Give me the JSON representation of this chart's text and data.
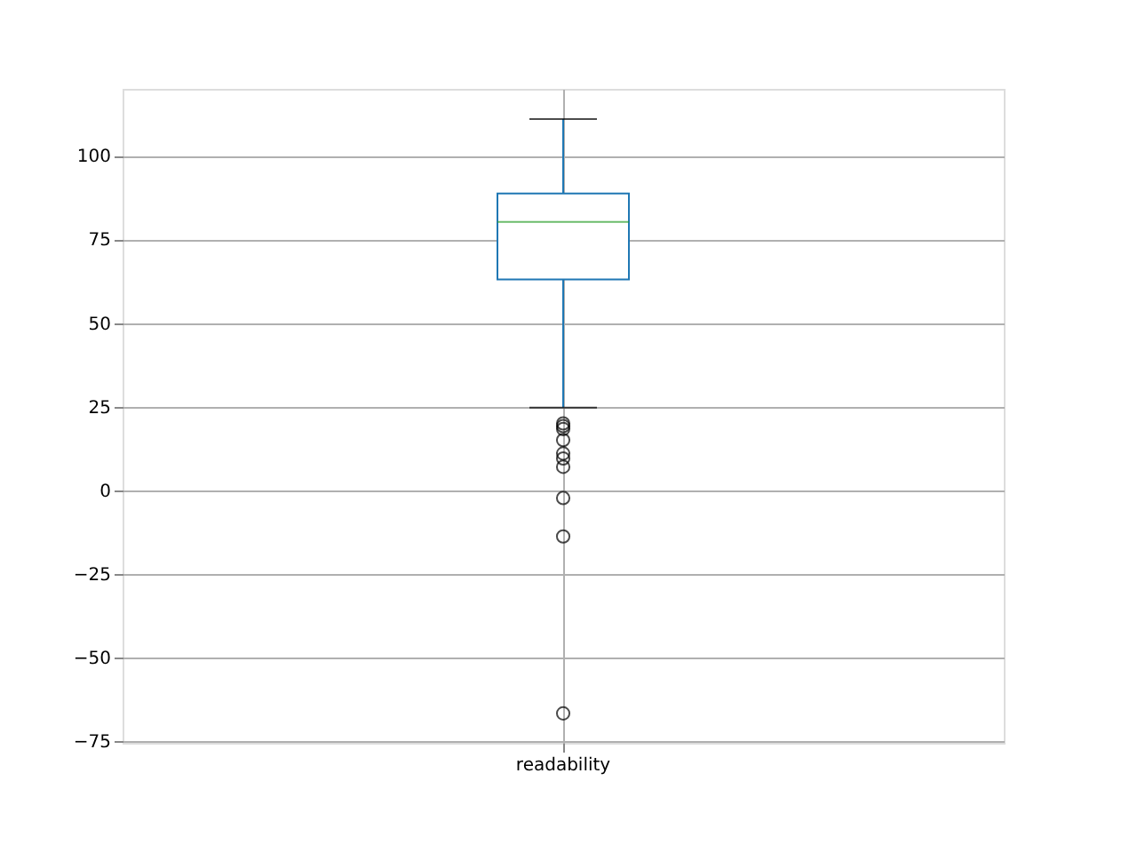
{
  "chart_data": {
    "type": "box",
    "categories": [
      "readability"
    ],
    "boxes": [
      {
        "low": 24.7,
        "q1": 63,
        "median": 80.2,
        "q3": 88.7,
        "high": 111,
        "outliers": [
          20,
          19.2,
          18.3,
          15,
          11,
          9.5,
          7,
          -2.3,
          -13.8,
          -66.7
        ]
      }
    ],
    "ylim": [
      -75.5,
      120
    ],
    "yticks": [
      -75,
      -50,
      -25,
      0,
      25,
      50,
      75,
      100
    ],
    "grid": true,
    "color": "#1f77b4"
  }
}
